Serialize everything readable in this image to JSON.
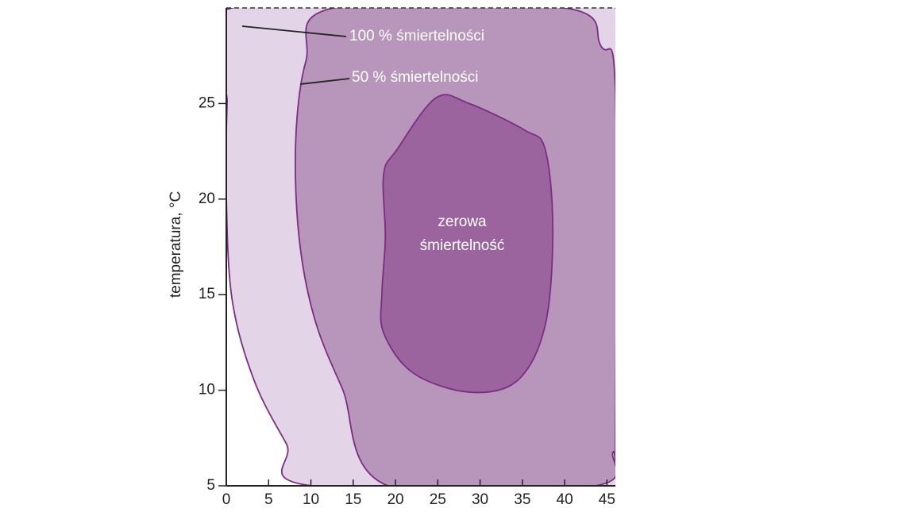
{
  "chart_data": {
    "type": "region",
    "ylabel": "temperatura, °C",
    "xlim": [
      0,
      46
    ],
    "ylim": [
      5,
      30
    ],
    "xticks": [
      0,
      5,
      10,
      15,
      20,
      25,
      30,
      35,
      40,
      45
    ],
    "yticks": [
      5,
      10,
      15,
      20,
      25
    ],
    "series": [
      {
        "name": "100 % śmiertelności",
        "color": "#e4d4e7",
        "x": [
          0.7,
          0.1,
          0,
          0.7,
          3.3,
          7.1,
          10.1,
          46,
          46
        ],
        "values": [
          30,
          25.1,
          20.1,
          14.7,
          10.5,
          7.2,
          5,
          5,
          30
        ]
      },
      {
        "name": "50 % śmiertelności",
        "color": "#b896bb",
        "x": [
          12.7,
          9.4,
          8.2,
          8.6,
          10.4,
          13.7,
          19.1,
          43.6,
          45.7,
          46,
          46,
          44.3,
          40
        ],
        "values": [
          30,
          27.2,
          23,
          18,
          13.8,
          10.1,
          5,
          5,
          6.75,
          7.6,
          25.7,
          28,
          30
        ]
      },
      {
        "name": "zerowa śmiertelność",
        "color": "#9c649e",
        "x": [
          24.8,
          28.7,
          35.3,
          37.7,
          38.6,
          37.7,
          34.4,
          28.7,
          22.1,
          18.6,
          18.4,
          18.8,
          18.6,
          20.2
        ],
        "values": [
          25.3,
          25,
          23.6,
          22.6,
          18.4,
          13.4,
          10.5,
          9.9,
          10.9,
          13,
          15.1,
          18,
          21.3,
          22.6
        ]
      }
    ],
    "annotations": [
      "zerowa",
      "śmiertelność"
    ]
  }
}
